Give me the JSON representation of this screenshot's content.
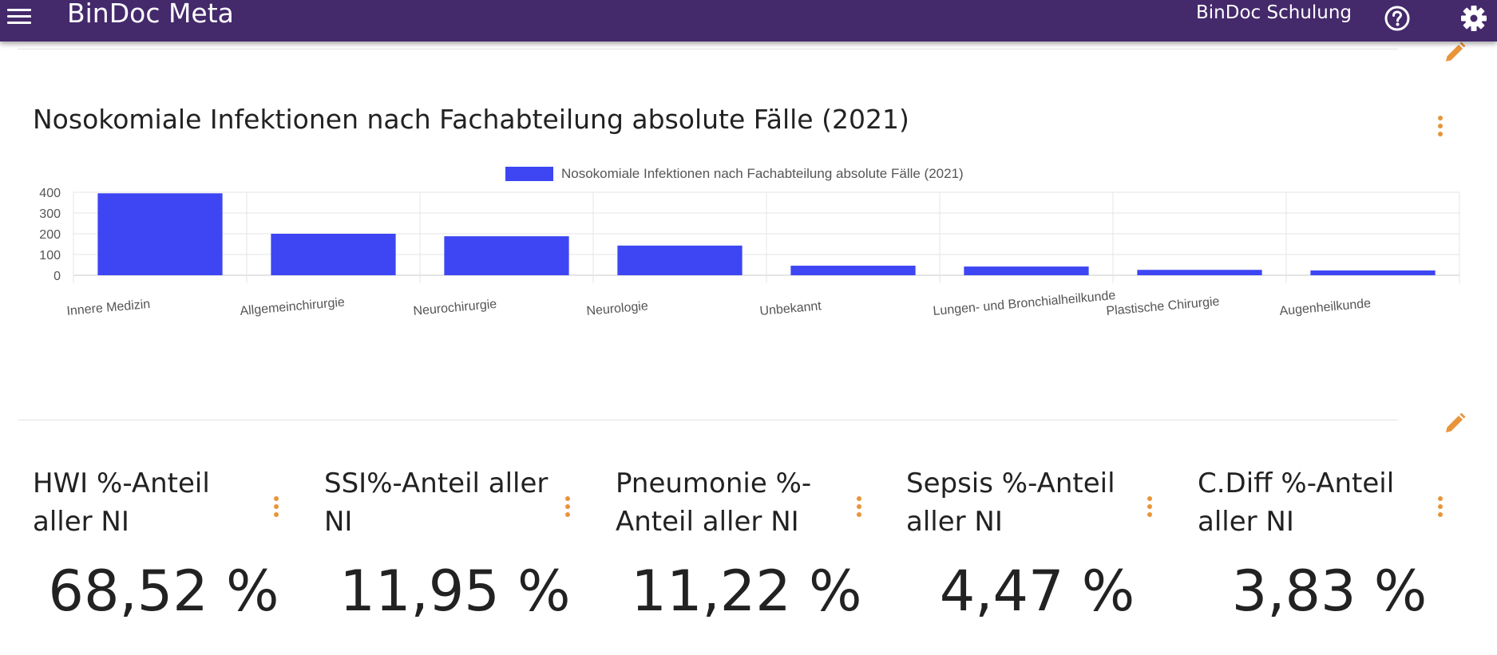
{
  "header": {
    "title": "BinDoc Meta",
    "user": "BinDoc Schulung",
    "menu_icon": "hamburger-menu-icon",
    "help_icon": "help-circle-icon",
    "settings_icon": "gear-icon",
    "background": "#44296b"
  },
  "edit_icon_color": "#e8953a",
  "chart_widget": {
    "title": "Nosokomiale Infektionen nach Fachabteilung absolute Fälle (2021)"
  },
  "chart_data": {
    "type": "bar",
    "categories": [
      "Innere Medizin",
      "Allgemeinchirurgie",
      "Neurochirurgie",
      "Neurologie",
      "Unbekannt",
      "Lungen- und Bronchialheilkunde",
      "Plastische Chirurgie",
      "Augenheilkunde"
    ],
    "series": [
      {
        "name": "Nosokomiale Infektionen nach Fachabteilung absolute Fälle (2021)",
        "values": [
          395,
          200,
          188,
          143,
          46,
          42,
          26,
          23
        ],
        "color": "#3d46f2"
      }
    ],
    "y_ticks": [
      0,
      100,
      200,
      300,
      400
    ],
    "ylim": [
      0,
      400
    ],
    "grid": true,
    "legend_position": "top-center"
  },
  "kpi_cards": [
    {
      "title": "HWI %-Anteil aller NI",
      "value": "68,52 %"
    },
    {
      "title": "SSI%-Anteil aller NI",
      "value": "11,95 %"
    },
    {
      "title": "Pneumonie %-Anteil aller NI",
      "value": "11,22 %"
    },
    {
      "title": "Sepsis %-Anteil aller NI",
      "value": "4,47 %"
    },
    {
      "title": "C.Diff %-Anteil aller NI",
      "value": "3,83 %"
    }
  ]
}
